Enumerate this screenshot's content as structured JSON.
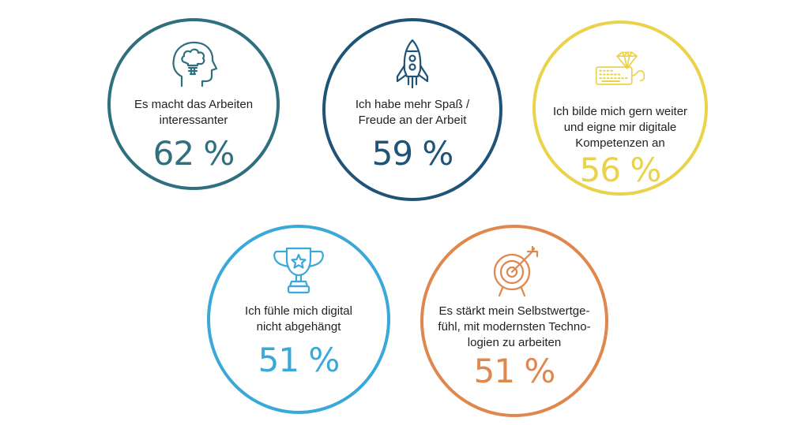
{
  "items": [
    {
      "label": "Es macht das Arbeiten\ninteressanter",
      "value": "62 %",
      "color": "#2f6f7e",
      "icon": "head-lightbulb-icon"
    },
    {
      "label": "Ich habe mehr Spaß /\nFreude an der Arbeit",
      "value": "59 %",
      "color": "#1f5377",
      "icon": "rocket-icon"
    },
    {
      "label": "Ich bilde mich gern weiter\nund eigne mir digitale\nKompetenzen an",
      "value": "56 %",
      "color": "#ead24a",
      "icon": "keyboard-diamond-icon"
    },
    {
      "label": "Ich fühle mich digital\nnicht abgehängt",
      "value": "51 %",
      "color": "#3aa8d8",
      "icon": "trophy-icon"
    },
    {
      "label": "Es stärkt mein Selbstwertge-\nfühl, mit modernsten Techno-\nlogien zu arbeiten",
      "value": "51 %",
      "color": "#e0874d",
      "icon": "target-arrow-icon"
    }
  ]
}
